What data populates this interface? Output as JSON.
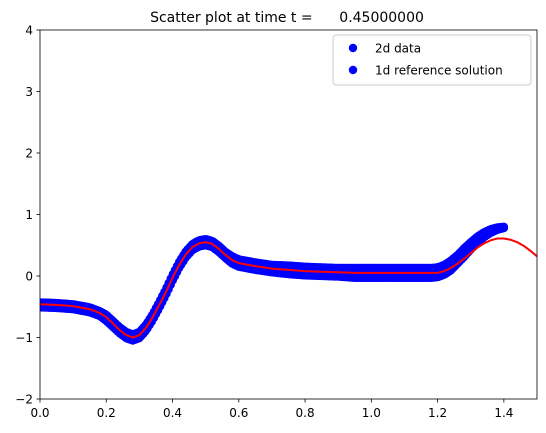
{
  "chart_data": {
    "type": "scatter",
    "title": "Scatter plot at time t =      0.45000000",
    "xlabel": "",
    "ylabel": "",
    "xlim": [
      0.0,
      1.5
    ],
    "ylim": [
      -2,
      4
    ],
    "x_ticks": [
      "0.0",
      "0.2",
      "0.4",
      "0.6",
      "0.8",
      "1.0",
      "1.2",
      "1.4"
    ],
    "y_ticks": [
      "−2",
      "−1",
      "0",
      "1",
      "2",
      "3",
      "4"
    ],
    "grid": false,
    "legend_position": "top-right",
    "legend": [
      "2d data",
      "1d reference solution"
    ],
    "colors": {
      "scatter": "#0000ff",
      "reference": "#ff0000"
    },
    "series": [
      {
        "name": "2d data",
        "kind": "scatter",
        "x": [
          0.0,
          0.05,
          0.1,
          0.15,
          0.18,
          0.2,
          0.22,
          0.24,
          0.26,
          0.28,
          0.3,
          0.32,
          0.34,
          0.36,
          0.38,
          0.4,
          0.42,
          0.44,
          0.46,
          0.48,
          0.5,
          0.52,
          0.54,
          0.56,
          0.58,
          0.6,
          0.65,
          0.7,
          0.75,
          0.8,
          0.85,
          0.9,
          0.95,
          1.0,
          1.05,
          1.1,
          1.15,
          1.18,
          1.2,
          1.22,
          1.24,
          1.26,
          1.28,
          1.3,
          1.32,
          1.34,
          1.36,
          1.38,
          1.4
        ],
        "y": [
          -0.47,
          -0.48,
          -0.5,
          -0.55,
          -0.61,
          -0.68,
          -0.78,
          -0.88,
          -0.96,
          -1.0,
          -0.96,
          -0.84,
          -0.67,
          -0.47,
          -0.26,
          -0.03,
          0.18,
          0.35,
          0.47,
          0.53,
          0.55,
          0.52,
          0.44,
          0.34,
          0.26,
          0.21,
          0.16,
          0.12,
          0.1,
          0.08,
          0.07,
          0.06,
          0.05,
          0.05,
          0.05,
          0.05,
          0.05,
          0.05,
          0.06,
          0.1,
          0.17,
          0.27,
          0.38,
          0.49,
          0.59,
          0.67,
          0.73,
          0.77,
          0.79
        ],
        "spread": [
          0.04,
          0.04,
          0.04,
          0.04,
          0.04,
          0.05,
          0.05,
          0.05,
          0.05,
          0.05,
          0.05,
          0.05,
          0.05,
          0.05,
          0.05,
          0.05,
          0.05,
          0.05,
          0.05,
          0.05,
          0.05,
          0.05,
          0.05,
          0.05,
          0.06,
          0.06,
          0.06,
          0.06,
          0.07,
          0.07,
          0.07,
          0.07,
          0.08,
          0.08,
          0.08,
          0.08,
          0.08,
          0.08,
          0.08,
          0.08,
          0.08,
          0.07,
          0.07,
          0.06,
          0.05,
          0.04,
          0.03,
          0.02,
          0.01
        ]
      },
      {
        "name": "1d reference solution",
        "kind": "line",
        "x": [
          0.0,
          0.05,
          0.1,
          0.15,
          0.18,
          0.2,
          0.22,
          0.24,
          0.26,
          0.28,
          0.3,
          0.32,
          0.34,
          0.36,
          0.38,
          0.4,
          0.42,
          0.44,
          0.46,
          0.48,
          0.5,
          0.52,
          0.54,
          0.56,
          0.58,
          0.6,
          0.65,
          0.7,
          0.75,
          0.8,
          0.85,
          0.9,
          0.95,
          1.0,
          1.05,
          1.1,
          1.15,
          1.2,
          1.22,
          1.24,
          1.26,
          1.28,
          1.3,
          1.32,
          1.34,
          1.36,
          1.38,
          1.4,
          1.42,
          1.44,
          1.46,
          1.48,
          1.5
        ],
        "y": [
          -0.46,
          -0.47,
          -0.49,
          -0.54,
          -0.6,
          -0.67,
          -0.77,
          -0.88,
          -0.96,
          -1.0,
          -0.96,
          -0.84,
          -0.67,
          -0.47,
          -0.26,
          -0.03,
          0.18,
          0.35,
          0.47,
          0.53,
          0.55,
          0.52,
          0.44,
          0.34,
          0.26,
          0.21,
          0.16,
          0.12,
          0.1,
          0.08,
          0.07,
          0.06,
          0.05,
          0.05,
          0.05,
          0.05,
          0.05,
          0.05,
          0.08,
          0.13,
          0.2,
          0.28,
          0.37,
          0.46,
          0.53,
          0.58,
          0.61,
          0.61,
          0.59,
          0.55,
          0.49,
          0.41,
          0.32
        ]
      }
    ]
  }
}
